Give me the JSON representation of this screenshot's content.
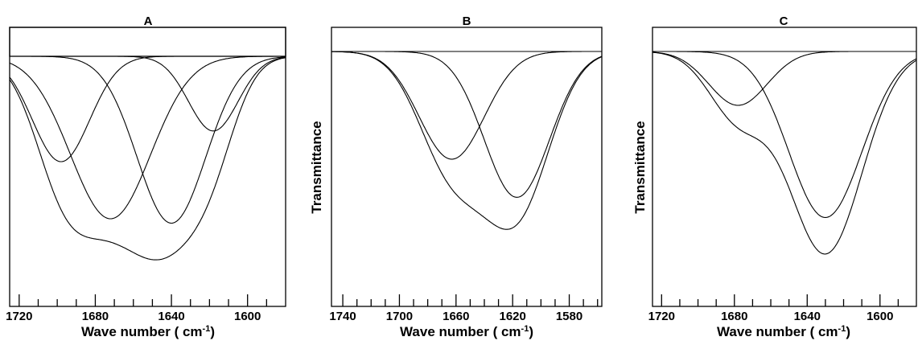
{
  "chart_data": [
    {
      "type": "line",
      "panel_label": "A",
      "xlabel": "Wave number ( cm",
      "xlabel_sup": "-1",
      "xlabel_end": ")",
      "ylabel": "",
      "xlim": [
        1725,
        1580
      ],
      "x_reversed": true,
      "x_ticks": [
        1720,
        1680,
        1640,
        1600
      ],
      "x_minor_step": 10,
      "y_axis_labels_shown": false,
      "baseline": 0.82,
      "composite_minimum": 1655,
      "components": [
        {
          "center": 1698,
          "depth": 0.48,
          "width": 15
        },
        {
          "center": 1672,
          "depth": 0.74,
          "width": 21
        },
        {
          "center": 1640,
          "depth": 0.76,
          "width": 18
        },
        {
          "center": 1618,
          "depth": 0.34,
          "width": 13
        }
      ]
    },
    {
      "type": "line",
      "panel_label": "B",
      "xlabel": "Wave number ( cm",
      "xlabel_sup": "-1",
      "xlabel_end": ")",
      "ylabel": "Transmittance",
      "xlim": [
        1748,
        1557
      ],
      "x_reversed": true,
      "x_ticks": [
        1740,
        1700,
        1660,
        1620,
        1580
      ],
      "x_minor_step": 10,
      "y_axis_labels_shown": false,
      "baseline": 0.85,
      "composite_minimum": 1628,
      "components": [
        {
          "center": 1663,
          "depth": 0.48,
          "width": 23
        },
        {
          "center": 1617,
          "depth": 0.65,
          "width": 23
        }
      ]
    },
    {
      "type": "line",
      "panel_label": "C",
      "xlabel": "Wave number ( cm",
      "xlabel_sup": "-1",
      "xlabel_end": ")",
      "ylabel": "Transmittance",
      "xlim": [
        1725,
        1580
      ],
      "x_reversed": true,
      "x_ticks": [
        1720,
        1680,
        1640,
        1600
      ],
      "x_minor_step": 10,
      "y_axis_labels_shown": false,
      "baseline": 0.84,
      "composite_minimum": 1630,
      "components": [
        {
          "center": 1678,
          "depth": 0.24,
          "width": 16
        },
        {
          "center": 1630,
          "depth": 0.74,
          "width": 20
        }
      ]
    }
  ]
}
